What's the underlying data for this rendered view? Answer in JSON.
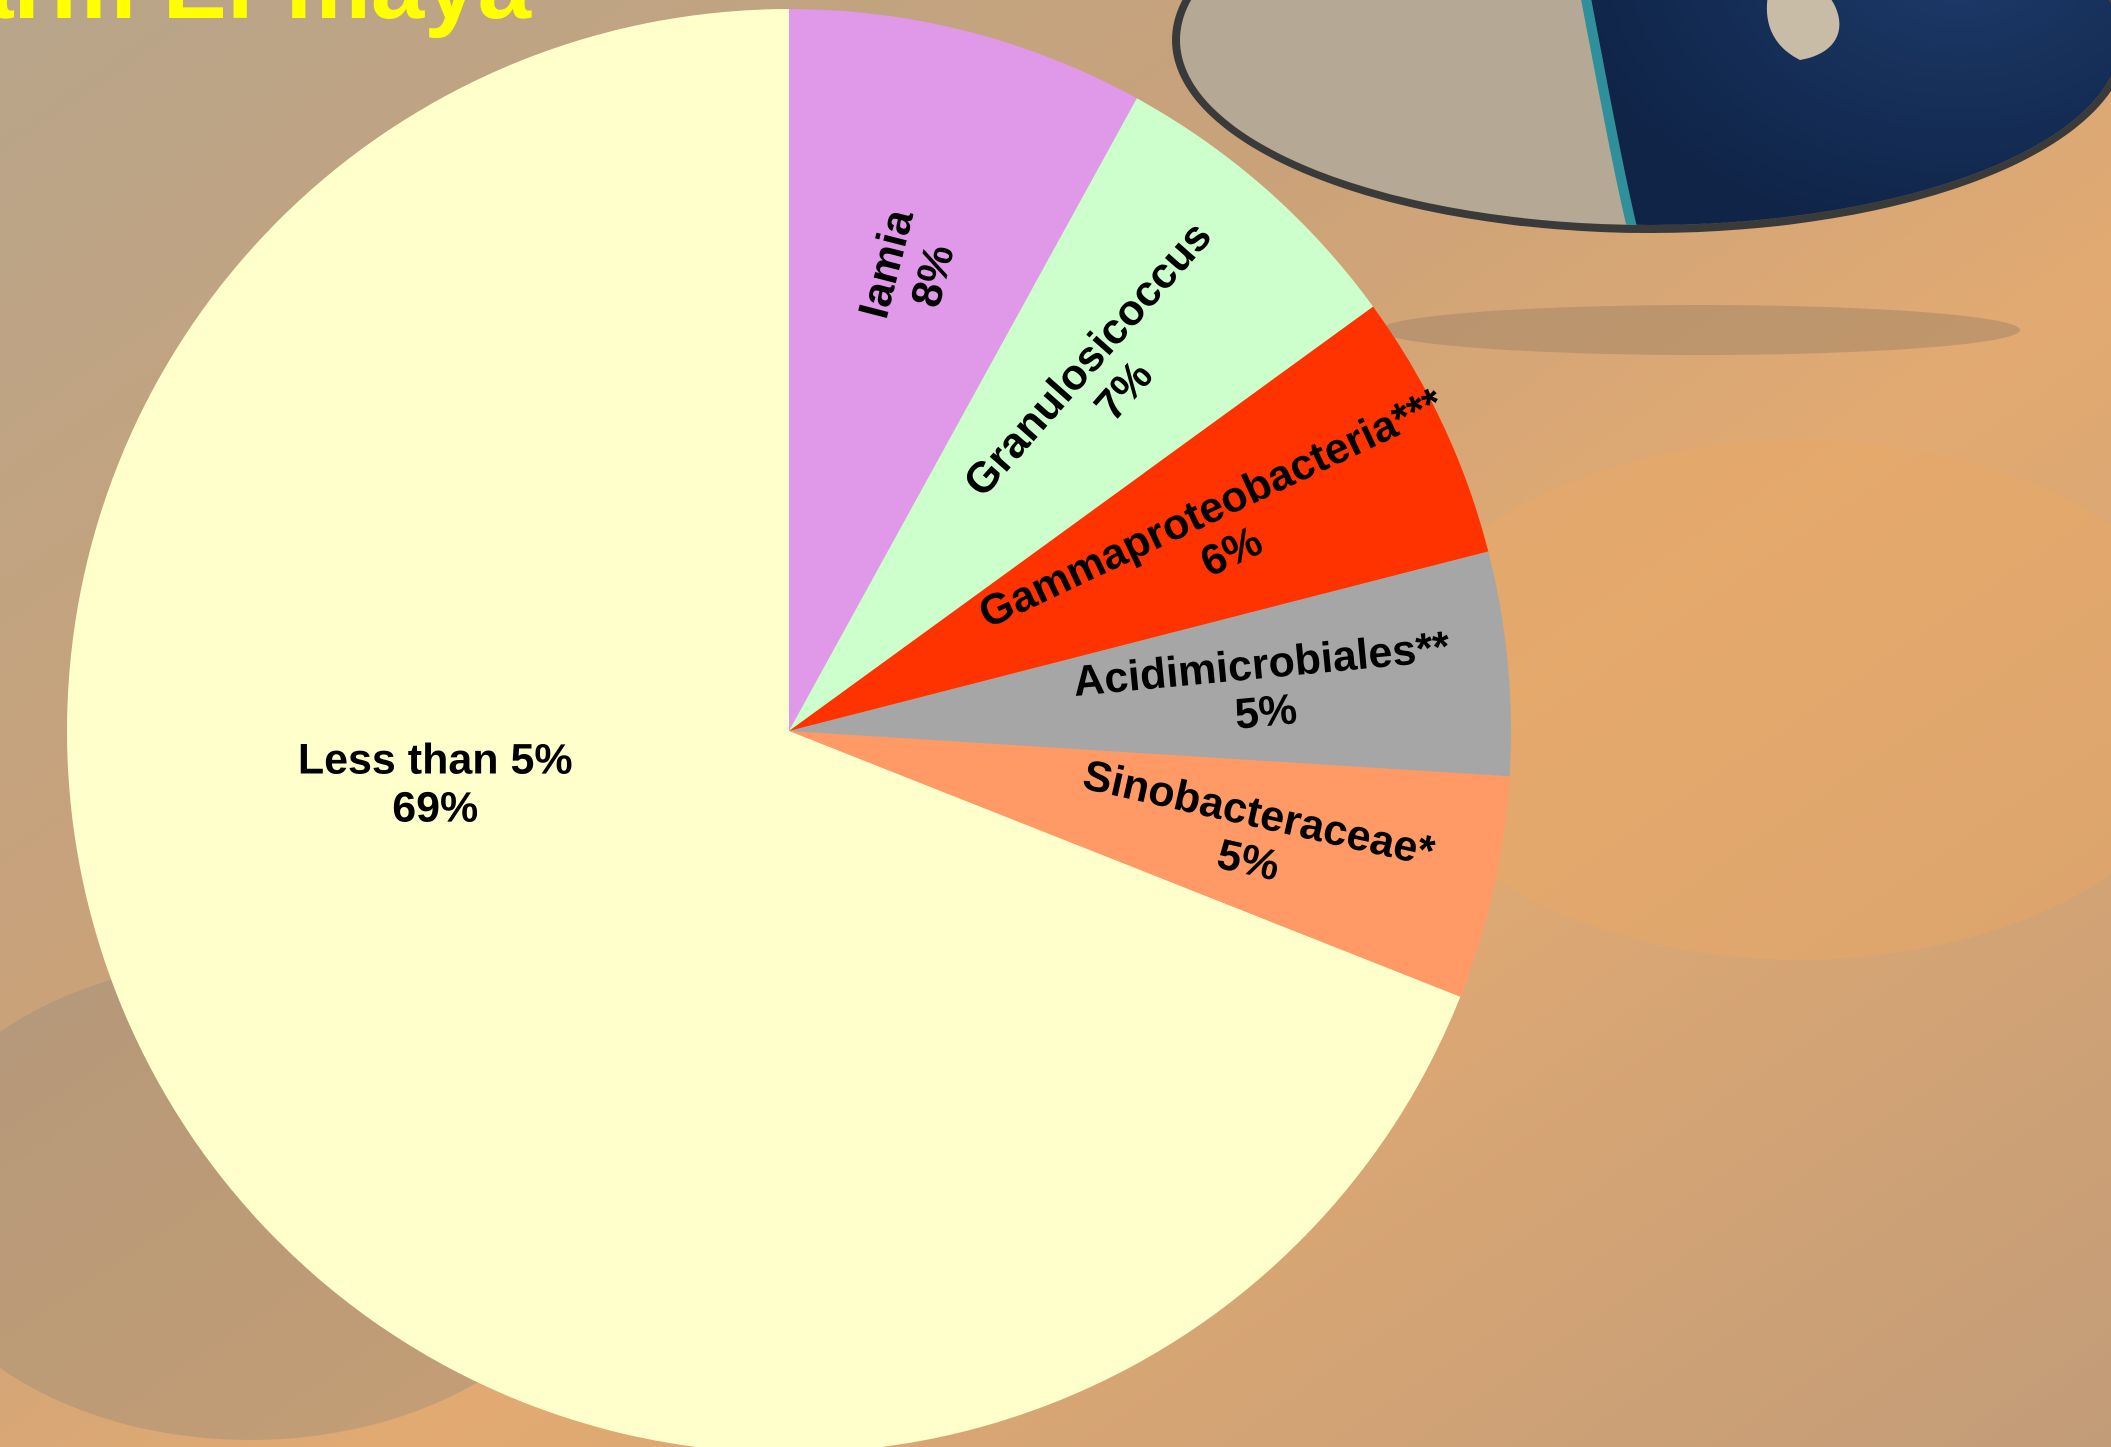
{
  "chart_data": {
    "type": "pie",
    "title": "arm El-maya",
    "categories": [
      "Iamia",
      "Granulosicoccus",
      "Gammaproteobacteria***",
      "Acidimicrobiales**",
      "Sinobacteraceae*",
      "Less than 5%"
    ],
    "values": [
      8,
      7,
      6,
      5,
      5,
      69
    ],
    "value_labels": [
      "8%",
      "7%",
      "6%",
      "5%",
      "5%",
      "69%"
    ],
    "colors": [
      "#e099e8",
      "#ccffcc",
      "#ff3300",
      "#a6a6a6",
      "#ff9966",
      "#ffffcc"
    ]
  }
}
